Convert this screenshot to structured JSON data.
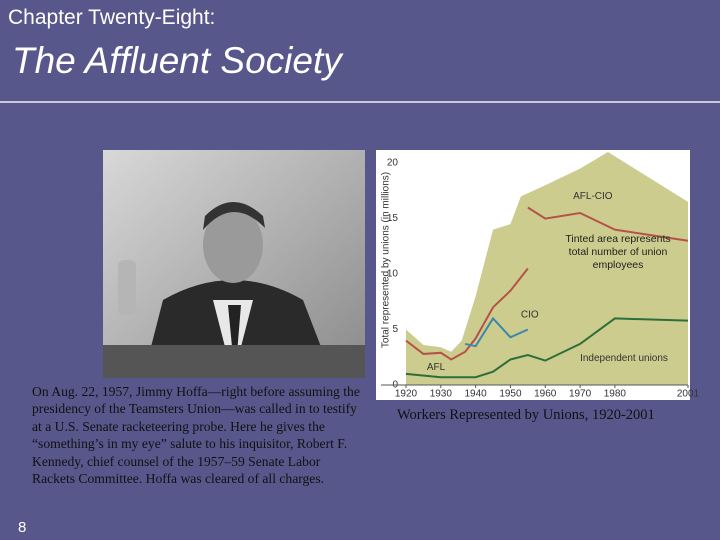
{
  "slide": {
    "chapter": "Chapter Twenty-Eight:",
    "title": "The Affluent Society",
    "photo_caption": "On Aug. 22, 1957, Jimmy Hoffa—right before assuming the presidency of the Teamsters Union—was called in to testify at a U.S. Senate racketeering probe. Here he gives the “something’s in my eye” salute to his inquisitor, Robert F. Kennedy, chief counsel of the 1957–59 Senate Labor Rackets Committee. Hoffa was cleared of all charges.",
    "number": "8"
  },
  "chart_data": {
    "type": "line",
    "title": "Workers Represented by Unions, 1920-2001",
    "y_label": "Total represented by unions (in millions)",
    "annotation": "Tinted area represents total number of union employees",
    "xlim": [
      1920,
      2001
    ],
    "xticks": [
      1920,
      1930,
      1940,
      1950,
      1960,
      1970,
      1980,
      2001
    ],
    "ylim": [
      0,
      21
    ],
    "yticks": [
      0,
      5,
      10,
      15,
      20
    ],
    "grid": false,
    "area": {
      "color": "#cccc8e",
      "x": [
        1920,
        1925,
        1930,
        1933,
        1936,
        1940,
        1945,
        1950,
        1953,
        1960,
        1970,
        1978,
        2001
      ],
      "values": [
        5,
        3.6,
        3.4,
        3,
        4,
        8,
        14,
        14.5,
        17,
        18,
        19.5,
        21,
        16.5
      ]
    },
    "series": [
      {
        "name": "AFL",
        "color": "#b5524a",
        "x": [
          1920,
          1925,
          1930,
          1933,
          1937,
          1940,
          1945,
          1950,
          1955
        ],
        "values": [
          4,
          2.8,
          2.9,
          2.3,
          3,
          4.2,
          7,
          8.5,
          10.5
        ]
      },
      {
        "name": "AFL-CIO",
        "color": "#b5524a",
        "x": [
          1955,
          1960,
          1970,
          1980,
          2001
        ],
        "values": [
          16,
          15,
          15.5,
          14,
          13
        ]
      },
      {
        "name": "CIO",
        "color": "#3f87a8",
        "x": [
          1937,
          1940,
          1945,
          1950,
          1955
        ],
        "values": [
          3.7,
          3.5,
          6,
          4.3,
          5
        ]
      },
      {
        "name": "Independent unions",
        "color": "#2e6e3a",
        "x": [
          1920,
          1930,
          1940,
          1945,
          1950,
          1955,
          1960,
          1970,
          1980,
          2001
        ],
        "values": [
          1,
          0.7,
          0.7,
          1.2,
          2.3,
          2.7,
          2.2,
          3.7,
          6,
          5.8
        ]
      }
    ]
  }
}
